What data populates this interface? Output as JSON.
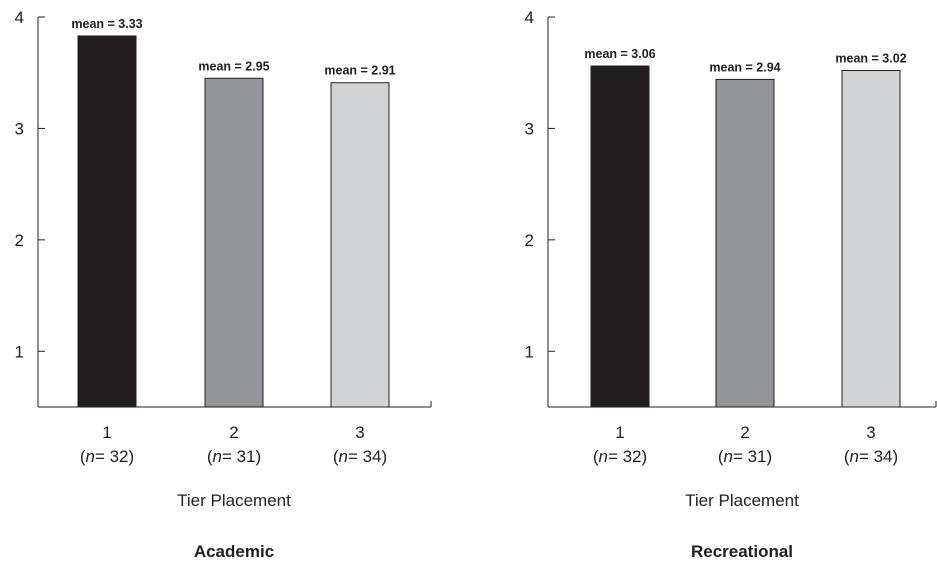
{
  "chart_data": [
    {
      "type": "bar",
      "title": "Academic",
      "xlabel": "Tier Placement",
      "ylabel": "",
      "ylim": [
        0.5,
        4
      ],
      "yticks": [
        1,
        2,
        3,
        4
      ],
      "grid": false,
      "categories": [
        {
          "tier": "1",
          "n_prefix": "n",
          "n_value": "= 32",
          "mean_label": "mean = 3.33",
          "value": 3.83,
          "color": "#231f20"
        },
        {
          "tier": "2",
          "n_prefix": "n",
          "n_value": "= 31",
          "mean_label": "mean = 2.95",
          "value": 3.45,
          "color": "#939598"
        },
        {
          "tier": "3",
          "n_prefix": "n",
          "n_value": "= 34",
          "mean_label": "mean = 2.91",
          "value": 3.41,
          "color": "#d1d3d4"
        }
      ]
    },
    {
      "type": "bar",
      "title": "Recreational",
      "xlabel": "Tier Placement",
      "ylabel": "",
      "ylim": [
        0.5,
        4
      ],
      "yticks": [
        1,
        2,
        3,
        4
      ],
      "grid": false,
      "categories": [
        {
          "tier": "1",
          "n_prefix": "n",
          "n_value": "= 32",
          "mean_label": "mean = 3.06",
          "value": 3.56,
          "color": "#231f20"
        },
        {
          "tier": "2",
          "n_prefix": "n",
          "n_value": "= 31",
          "mean_label": "mean = 2.94",
          "value": 3.44,
          "color": "#939598"
        },
        {
          "tier": "3",
          "n_prefix": "n",
          "n_value": "= 34",
          "mean_label": "mean = 3.02",
          "value": 3.52,
          "color": "#d1d3d4"
        }
      ]
    }
  ]
}
